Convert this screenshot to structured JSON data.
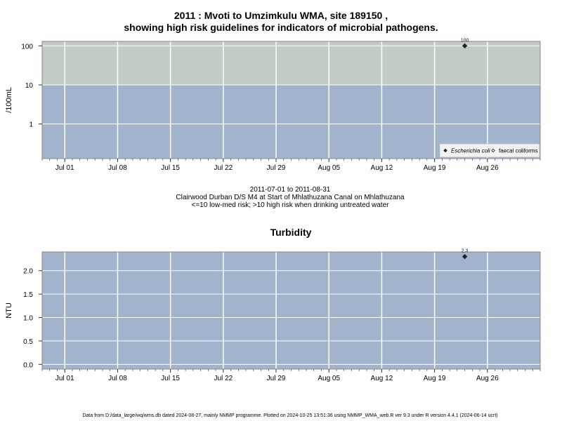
{
  "header": {
    "title_line1": "2011 : Mvoti to Umzimkulu WMA, site 189150 ,",
    "title_line2": "showing high risk guidelines for indicators of microbial pathogens."
  },
  "info": {
    "date_range": "2011-07-01 to 2011-08-31",
    "site_desc": "Clairwood Durban D/S M4 at Start of Mhlathuzana Canal on Mhlathuzana",
    "risk_note": "<=10 low-med risk; >10 high risk when drinking untreated water"
  },
  "footer": {
    "text": "Data from D:/data_large/wq/wms.db dated 2024-08-27, mainly NMMP programme. Plotted on 2024-10-25 13:51:36 using NMMP_WMA_web.R ver 9.3 under R version 4.4.1 (2024-06-14 ucrt)"
  },
  "chart_data": [
    {
      "type": "scatter",
      "title": "",
      "ylabel": "/100mL",
      "yscale": "log",
      "ylim": [
        0.13,
        130
      ],
      "yticks": [
        {
          "v": 1,
          "l": "1"
        },
        {
          "v": 10,
          "l": "10"
        },
        {
          "v": 100,
          "l": "100"
        }
      ],
      "xlim": [
        "2011-06-28",
        "2011-09-02"
      ],
      "xticks": [
        {
          "d": "2011-07-01",
          "l": "Jul 01"
        },
        {
          "d": "2011-07-08",
          "l": "Jul 08"
        },
        {
          "d": "2011-07-15",
          "l": "Jul 15"
        },
        {
          "d": "2011-07-22",
          "l": "Jul 22"
        },
        {
          "d": "2011-07-29",
          "l": "Jul 29"
        },
        {
          "d": "2011-08-05",
          "l": "Aug 05"
        },
        {
          "d": "2011-08-12",
          "l": "Aug 12"
        },
        {
          "d": "2011-08-19",
          "l": "Aug 19"
        },
        {
          "d": "2011-08-26",
          "l": "Aug 26"
        }
      ],
      "bands": [
        {
          "from": 0.13,
          "to": 10,
          "color": "#a2b4cc"
        },
        {
          "from": 10,
          "to": 130,
          "color": "#c2ccc2"
        }
      ],
      "series": [
        {
          "name": "Escherichia coli",
          "marker": "diamond-filled",
          "points": [
            {
              "x": "2011-08-23",
              "y": 100,
              "label": "100"
            }
          ]
        },
        {
          "name": "faecal coliforms",
          "marker": "diamond-open",
          "points": []
        }
      ],
      "legend": "bottom-right",
      "grid": true
    },
    {
      "type": "scatter",
      "title": "Turbidity",
      "ylabel": "NTU",
      "yscale": "linear",
      "ylim": [
        -0.1,
        2.4
      ],
      "yticks": [
        {
          "v": 0,
          "l": "0.0"
        },
        {
          "v": 0.5,
          "l": "0.5"
        },
        {
          "v": 1,
          "l": "1.0"
        },
        {
          "v": 1.5,
          "l": "1.5"
        },
        {
          "v": 2,
          "l": "2.0"
        }
      ],
      "xlim": [
        "2011-06-28",
        "2011-09-02"
      ],
      "xticks": [
        {
          "d": "2011-07-01",
          "l": "Jul 01"
        },
        {
          "d": "2011-07-08",
          "l": "Jul 08"
        },
        {
          "d": "2011-07-15",
          "l": "Jul 15"
        },
        {
          "d": "2011-07-22",
          "l": "Jul 22"
        },
        {
          "d": "2011-07-29",
          "l": "Jul 29"
        },
        {
          "d": "2011-08-05",
          "l": "Aug 05"
        },
        {
          "d": "2011-08-12",
          "l": "Aug 12"
        },
        {
          "d": "2011-08-19",
          "l": "Aug 19"
        },
        {
          "d": "2011-08-26",
          "l": "Aug 26"
        }
      ],
      "bands": [
        {
          "from": -0.1,
          "to": 2.4,
          "color": "#a2b4cc"
        }
      ],
      "series": [
        {
          "name": "",
          "marker": "diamond-filled",
          "points": [
            {
              "x": "2011-08-23",
              "y": 2.3,
              "label": "2.3"
            }
          ]
        }
      ],
      "grid": true
    }
  ]
}
